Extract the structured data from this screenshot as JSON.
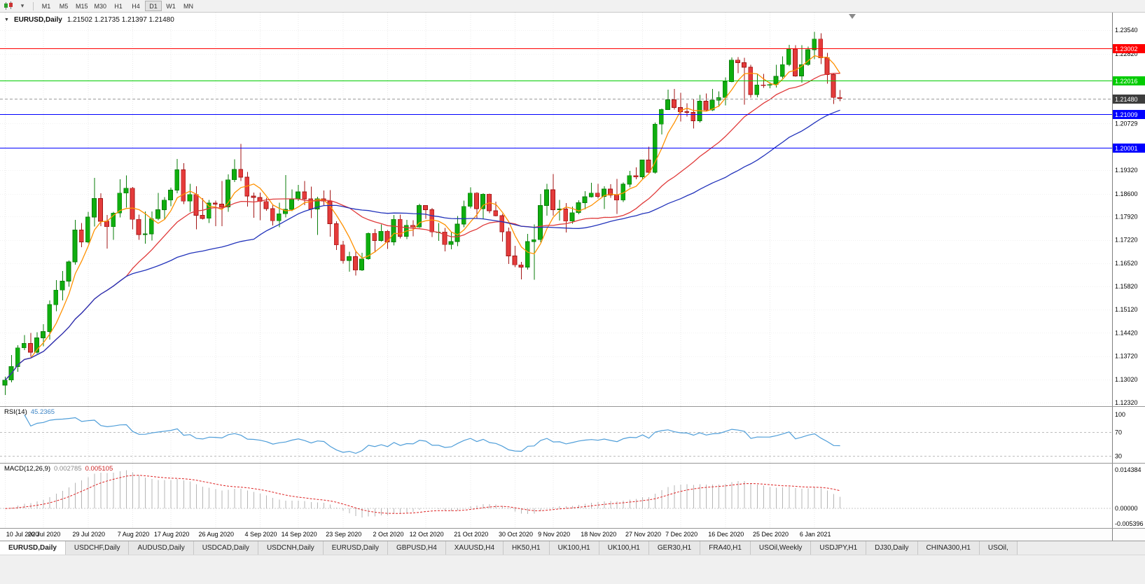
{
  "toolbar": {
    "timeframes": [
      "M1",
      "M5",
      "M15",
      "M30",
      "H1",
      "H4",
      "D1",
      "W1",
      "MN"
    ],
    "active_timeframe": "D1"
  },
  "chart": {
    "title_symbol": "EURUSD,Daily",
    "title_ohlc": "1.21502 1.21735 1.21397 1.21480",
    "axis_ticks": [
      "1.23540",
      "1.22820",
      "1.20729",
      "1.19320",
      "1.18600",
      "1.17920",
      "1.17220",
      "1.16520",
      "1.15820",
      "1.15120",
      "1.14420",
      "1.13720",
      "1.13020",
      "1.12320"
    ]
  },
  "rsi": {
    "name": "RSI(14)",
    "value": "45.2365",
    "levels": [
      "100",
      "70",
      "30"
    ]
  },
  "macd": {
    "name": "MACD(12,26,9)",
    "value_main": "0.002785",
    "value_signal": "0.005105",
    "axis_top": "0.014384",
    "axis_zero": "0.00000",
    "axis_bottom": "-0.005396"
  },
  "tabs": [
    "EURUSD,Daily",
    "USDCHF,Daily",
    "AUDUSD,Daily",
    "USDCAD,Daily",
    "USDCNH,Daily",
    "EURUSD,Daily",
    "GBPUSD,H4",
    "XAUUSD,H4",
    "HK50,H1",
    "UK100,H1",
    "UK100,H1",
    "GER30,H1",
    "FRA40,H1",
    "USOil,Weekly",
    "USDJPY,H1",
    "DJ30,Daily",
    "CHINA300,H1",
    "USOil,"
  ],
  "active_tab": 0,
  "chart_data": {
    "type": "candlestick",
    "symbol": "EURUSD",
    "timeframe": "Daily",
    "current_price": 1.2148,
    "price_axis": {
      "max": 1.2354,
      "min": 1.1232
    },
    "horizontal_lines": [
      {
        "price": 1.23002,
        "color": "#ff0000"
      },
      {
        "price": 1.22016,
        "color": "#00cc00"
      },
      {
        "price": 1.21009,
        "color": "#0000ff"
      },
      {
        "price": 1.20001,
        "color": "#0000ff"
      }
    ],
    "moving_averages": [
      {
        "period": 5,
        "color": "#ff9100"
      },
      {
        "period": 20,
        "color": "#e03a3a"
      },
      {
        "period": 40,
        "color": "#2233bb"
      }
    ],
    "indicators": [
      {
        "type": "RSI",
        "params": [
          14
        ],
        "value": 45.2365,
        "levels": [
          100,
          70,
          30
        ]
      },
      {
        "type": "MACD",
        "params": [
          12,
          26,
          9
        ],
        "value_main": 0.002785,
        "value_signal": 0.005105,
        "axis_range": [
          0.014384,
          -0.005396
        ]
      }
    ],
    "x_labels": [
      {
        "t": "10 Jul 2020",
        "i": 0
      },
      {
        "t": "20 Jul 2020",
        "i": 6
      },
      {
        "t": "29 Jul 2020",
        "i": 13
      },
      {
        "t": "7 Aug 2020",
        "i": 20
      },
      {
        "t": "17 Aug 2020",
        "i": 26
      },
      {
        "t": "26 Aug 2020",
        "i": 33
      },
      {
        "t": "4 Sep 2020",
        "i": 40
      },
      {
        "t": "14 Sep 2020",
        "i": 46
      },
      {
        "t": "23 Sep 2020",
        "i": 53
      },
      {
        "t": "2 Oct 2020",
        "i": 60
      },
      {
        "t": "12 Oct 2020",
        "i": 66
      },
      {
        "t": "21 Oct 2020",
        "i": 73
      },
      {
        "t": "30 Oct 2020",
        "i": 80
      },
      {
        "t": "9 Nov 2020",
        "i": 86
      },
      {
        "t": "18 Nov 2020",
        "i": 93
      },
      {
        "t": "27 Nov 2020",
        "i": 100
      },
      {
        "t": "7 Dec 2020",
        "i": 106
      },
      {
        "t": "16 Dec 2020",
        "i": 113
      },
      {
        "t": "25 Dec 2020",
        "i": 120
      },
      {
        "t": "6 Jan 2021",
        "i": 127
      }
    ],
    "candles_ohlc": [
      [
        1.1285,
        1.131,
        1.1255,
        1.13
      ],
      [
        1.13,
        1.1375,
        1.1293,
        1.1341
      ],
      [
        1.1341,
        1.1405,
        1.1325,
        1.1397
      ],
      [
        1.1397,
        1.1435,
        1.139,
        1.141
      ],
      [
        1.141,
        1.1442,
        1.137,
        1.1384
      ],
      [
        1.1384,
        1.1444,
        1.138,
        1.1427
      ],
      [
        1.1427,
        1.1468,
        1.1402,
        1.1446
      ],
      [
        1.1446,
        1.154,
        1.1422,
        1.1527
      ],
      [
        1.1527,
        1.1601,
        1.1507,
        1.1571
      ],
      [
        1.1571,
        1.1628,
        1.154,
        1.1598
      ],
      [
        1.1598,
        1.166,
        1.1581,
        1.1656
      ],
      [
        1.1656,
        1.1782,
        1.1648,
        1.1752
      ],
      [
        1.1752,
        1.1773,
        1.17,
        1.1716
      ],
      [
        1.1716,
        1.1807,
        1.1712,
        1.1791
      ],
      [
        1.1791,
        1.1909,
        1.1762,
        1.1847
      ],
      [
        1.1847,
        1.1863,
        1.1763,
        1.1778
      ],
      [
        1.1778,
        1.1797,
        1.1696,
        1.1762
      ],
      [
        1.1762,
        1.1807,
        1.1722,
        1.1803
      ],
      [
        1.1803,
        1.1905,
        1.179,
        1.1863
      ],
      [
        1.1863,
        1.1916,
        1.1819,
        1.1878
      ],
      [
        1.1878,
        1.1882,
        1.1754,
        1.1784
      ],
      [
        1.1784,
        1.1798,
        1.1722,
        1.1738
      ],
      [
        1.1738,
        1.1808,
        1.1711,
        1.174
      ],
      [
        1.174,
        1.1808,
        1.172,
        1.1786
      ],
      [
        1.1786,
        1.1864,
        1.1781,
        1.1813
      ],
      [
        1.1813,
        1.1851,
        1.1782,
        1.1842
      ],
      [
        1.1842,
        1.1879,
        1.1824,
        1.1872
      ],
      [
        1.1872,
        1.1966,
        1.1863,
        1.1933
      ],
      [
        1.1933,
        1.1953,
        1.183,
        1.1839
      ],
      [
        1.1839,
        1.1891,
        1.1807,
        1.1859
      ],
      [
        1.1859,
        1.1884,
        1.1754,
        1.1796
      ],
      [
        1.1796,
        1.1848,
        1.1784,
        1.1787
      ],
      [
        1.1787,
        1.1843,
        1.1773,
        1.1833
      ],
      [
        1.1833,
        1.184,
        1.1763,
        1.183
      ],
      [
        1.183,
        1.19,
        1.1763,
        1.1821
      ],
      [
        1.1821,
        1.192,
        1.1807,
        1.1903
      ],
      [
        1.1903,
        1.1965,
        1.1896,
        1.1934
      ],
      [
        1.1934,
        1.2011,
        1.1899,
        1.1911
      ],
      [
        1.1911,
        1.1927,
        1.1822,
        1.1854
      ],
      [
        1.1854,
        1.1865,
        1.1789,
        1.185
      ],
      [
        1.185,
        1.1865,
        1.1781,
        1.1838
      ],
      [
        1.1838,
        1.1849,
        1.181,
        1.1816
      ],
      [
        1.1816,
        1.1827,
        1.1766,
        1.178
      ],
      [
        1.178,
        1.1834,
        1.176,
        1.1801
      ],
      [
        1.1801,
        1.1917,
        1.179,
        1.1814
      ],
      [
        1.1814,
        1.1874,
        1.1809,
        1.1845
      ],
      [
        1.1845,
        1.1888,
        1.1839,
        1.1867
      ],
      [
        1.1867,
        1.19,
        1.1827,
        1.1846
      ],
      [
        1.1846,
        1.1883,
        1.1788,
        1.1815
      ],
      [
        1.1815,
        1.1852,
        1.1737,
        1.1846
      ],
      [
        1.1846,
        1.1871,
        1.1826,
        1.1839
      ],
      [
        1.1839,
        1.1872,
        1.1732,
        1.1771
      ],
      [
        1.1771,
        1.1778,
        1.1692,
        1.1707
      ],
      [
        1.1707,
        1.1719,
        1.1651,
        1.166
      ],
      [
        1.166,
        1.1686,
        1.1626,
        1.1672
      ],
      [
        1.1672,
        1.1686,
        1.1615,
        1.1631
      ],
      [
        1.1631,
        1.1683,
        1.1628,
        1.1665
      ],
      [
        1.1665,
        1.1745,
        1.1662,
        1.1742
      ],
      [
        1.1742,
        1.1755,
        1.1684,
        1.172
      ],
      [
        1.172,
        1.1769,
        1.1717,
        1.1748
      ],
      [
        1.1748,
        1.1752,
        1.1695,
        1.1716
      ],
      [
        1.1716,
        1.1797,
        1.1706,
        1.1784
      ],
      [
        1.1784,
        1.1798,
        1.1727,
        1.1733
      ],
      [
        1.1733,
        1.1782,
        1.1724,
        1.1766
      ],
      [
        1.1766,
        1.1781,
        1.1733,
        1.1761
      ],
      [
        1.1761,
        1.1831,
        1.1758,
        1.1826
      ],
      [
        1.1826,
        1.1827,
        1.1786,
        1.1813
      ],
      [
        1.1813,
        1.1818,
        1.1731,
        1.1746
      ],
      [
        1.1746,
        1.1773,
        1.1719,
        1.1746
      ],
      [
        1.1746,
        1.1758,
        1.1688,
        1.1708
      ],
      [
        1.1708,
        1.1747,
        1.1694,
        1.1717
      ],
      [
        1.1717,
        1.1794,
        1.1703,
        1.177
      ],
      [
        1.177,
        1.184,
        1.176,
        1.1823
      ],
      [
        1.1823,
        1.1881,
        1.1817,
        1.1863
      ],
      [
        1.1863,
        1.1866,
        1.1787,
        1.1816
      ],
      [
        1.1816,
        1.1863,
        1.1786,
        1.186
      ],
      [
        1.186,
        1.1862,
        1.1803,
        1.181
      ],
      [
        1.181,
        1.1837,
        1.1793,
        1.1795
      ],
      [
        1.1795,
        1.18,
        1.1717,
        1.1747
      ],
      [
        1.1747,
        1.1759,
        1.165,
        1.1674
      ],
      [
        1.1674,
        1.1704,
        1.164,
        1.1647
      ],
      [
        1.1647,
        1.1656,
        1.1603,
        1.164
      ],
      [
        1.164,
        1.174,
        1.1633,
        1.1717
      ],
      [
        1.1717,
        1.1769,
        1.1602,
        1.1723
      ],
      [
        1.1723,
        1.1861,
        1.1715,
        1.1826
      ],
      [
        1.1826,
        1.1891,
        1.1795,
        1.1873
      ],
      [
        1.1873,
        1.1921,
        1.1795,
        1.1813
      ],
      [
        1.1813,
        1.1843,
        1.178,
        1.1815
      ],
      [
        1.1815,
        1.1833,
        1.1745,
        1.1779
      ],
      [
        1.1779,
        1.1823,
        1.1771,
        1.1804
      ],
      [
        1.1804,
        1.1842,
        1.1799,
        1.1834
      ],
      [
        1.1834,
        1.1869,
        1.1814,
        1.1852
      ],
      [
        1.1852,
        1.1894,
        1.185,
        1.1863
      ],
      [
        1.1863,
        1.1891,
        1.1847,
        1.1853
      ],
      [
        1.1853,
        1.1884,
        1.1815,
        1.1875
      ],
      [
        1.1875,
        1.189,
        1.1849,
        1.1857
      ],
      [
        1.1857,
        1.1906,
        1.18,
        1.1842
      ],
      [
        1.1842,
        1.1895,
        1.1836,
        1.189
      ],
      [
        1.189,
        1.193,
        1.1881,
        1.1916
      ],
      [
        1.1916,
        1.1941,
        1.1905,
        1.1912
      ],
      [
        1.1912,
        1.1964,
        1.1904,
        1.1963
      ],
      [
        1.1963,
        1.2003,
        1.1924,
        1.1926
      ],
      [
        1.1926,
        1.2076,
        1.1922,
        1.2071
      ],
      [
        1.2071,
        1.2118,
        1.204,
        1.2115
      ],
      [
        1.2115,
        1.2175,
        1.2114,
        1.2144
      ],
      [
        1.2144,
        1.2177,
        1.2115,
        1.2121
      ],
      [
        1.2121,
        1.2165,
        1.2079,
        1.2108
      ],
      [
        1.2108,
        1.2134,
        1.2094,
        1.2106
      ],
      [
        1.2106,
        1.2147,
        1.2058,
        1.2081
      ],
      [
        1.2081,
        1.2159,
        1.2076,
        1.214
      ],
      [
        1.214,
        1.2163,
        1.2109,
        1.2113
      ],
      [
        1.2113,
        1.2177,
        1.211,
        1.2143
      ],
      [
        1.2143,
        1.2169,
        1.2123,
        1.2151
      ],
      [
        1.2151,
        1.2212,
        1.2127,
        1.2199
      ],
      [
        1.2199,
        1.2272,
        1.2197,
        1.2264
      ],
      [
        1.2264,
        1.2273,
        1.2224,
        1.2256
      ],
      [
        1.2256,
        1.2271,
        1.2129,
        1.2242
      ],
      [
        1.2242,
        1.225,
        1.215,
        1.216
      ],
      [
        1.216,
        1.2222,
        1.2152,
        1.2189
      ],
      [
        1.2189,
        1.2222,
        1.218,
        1.2188
      ],
      [
        1.2188,
        1.2197,
        1.2179,
        1.219
      ],
      [
        1.219,
        1.225,
        1.2181,
        1.2215
      ],
      [
        1.2215,
        1.2275,
        1.2208,
        1.225
      ],
      [
        1.225,
        1.231,
        1.2245,
        1.2297
      ],
      [
        1.2297,
        1.2309,
        1.2214,
        1.2216
      ],
      [
        1.2216,
        1.2309,
        1.2196,
        1.225
      ],
      [
        1.225,
        1.2304,
        1.2246,
        1.2295
      ],
      [
        1.2295,
        1.2349,
        1.2266,
        1.2327
      ],
      [
        1.2327,
        1.2344,
        1.2252,
        1.2271
      ],
      [
        1.2271,
        1.2285,
        1.2193,
        1.222
      ],
      [
        1.222,
        1.2223,
        1.2132,
        1.2151
      ],
      [
        1.2151,
        1.2174,
        1.214,
        1.2148
      ]
    ]
  }
}
